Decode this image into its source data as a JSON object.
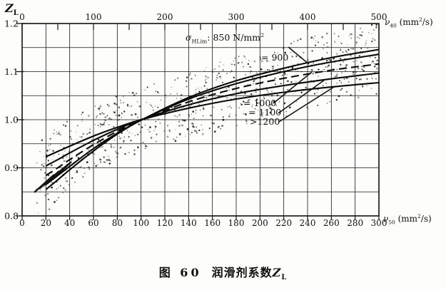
{
  "figure": {
    "caption": {
      "prefix": "图 60",
      "title": "润滑剂系数",
      "symbol": "Z",
      "symbol_sub": "L"
    }
  },
  "chart_data": {
    "type": "line",
    "title": "图 60 润滑剂系数 ZL (Figure 60 Lubricant factor ZL)",
    "y_axis": {
      "symbol": "Z",
      "symbol_sub": "L",
      "min": 0.8,
      "max": 1.2,
      "major_tick_labels": [
        "1.2",
        "1.1",
        "1.0",
        "0.9",
        "0.8"
      ],
      "major_tick_values": [
        1.2,
        1.1,
        1.0,
        0.9,
        0.8
      ],
      "minor_grid_step": 0.05
    },
    "x_top_axis": {
      "symbol": "ν",
      "symbol_sub": "40",
      "unit_pre": "(mm",
      "unit_sup": "2",
      "unit_post": "/s)",
      "min": 0,
      "max": 500,
      "major_ticks": [
        0,
        100,
        200,
        300,
        400,
        500
      ],
      "minor_tick_step": 50
    },
    "x_bottom_axis": {
      "symbol": "ν",
      "symbol_sub": "50",
      "unit_pre": "(mm",
      "unit_sup": "2",
      "unit_post": "/s)",
      "min": 0,
      "max": 300,
      "ticks": [
        0,
        20,
        40,
        60,
        80,
        100,
        120,
        140,
        160,
        180,
        200,
        220,
        240,
        260,
        280,
        300
      ],
      "grid_step": 20
    },
    "grid": {
      "on": true,
      "x_step": 20,
      "y_step": 0.05
    },
    "annotation": {
      "sigma_sym": "σ",
      "sigma_sub": "HLim",
      "sigma_rest": ": 850 N/mm",
      "sigma_sup": "2",
      "label_900": "= 900",
      "label_1000": "= 1000",
      "label_1100": "= 1100",
      "label_1200": ">1200"
    },
    "series": [
      {
        "name": "sigma-850",
        "label": "σHLim: 850 N/mm2",
        "style": "solid",
        "points": [
          [
            20,
            0.855
          ],
          [
            30,
            0.875
          ],
          [
            40,
            0.896
          ],
          [
            60,
            0.935
          ],
          [
            80,
            0.97
          ],
          [
            100,
            0.999
          ],
          [
            140,
            1.046
          ],
          [
            180,
            1.081
          ],
          [
            220,
            1.107
          ],
          [
            260,
            1.129
          ],
          [
            300,
            1.146
          ]
        ]
      },
      {
        "name": "sigma-900",
        "label": "= 900",
        "style": "solid",
        "points": [
          [
            20,
            0.865
          ],
          [
            30,
            0.884
          ],
          [
            40,
            0.903
          ],
          [
            60,
            0.94
          ],
          [
            80,
            0.972
          ],
          [
            100,
            0.999
          ],
          [
            140,
            1.043
          ],
          [
            180,
            1.075
          ],
          [
            220,
            1.1
          ],
          [
            260,
            1.12
          ],
          [
            300,
            1.136
          ]
        ]
      },
      {
        "name": "sigma-1000",
        "label": "= 1000",
        "style": "dashed",
        "points": [
          [
            20,
            0.884
          ],
          [
            30,
            0.9
          ],
          [
            40,
            0.917
          ],
          [
            60,
            0.948
          ],
          [
            80,
            0.976
          ],
          [
            100,
            0.999
          ],
          [
            140,
            1.037
          ],
          [
            180,
            1.065
          ],
          [
            220,
            1.086
          ],
          [
            260,
            1.103
          ],
          [
            300,
            1.116
          ]
        ]
      },
      {
        "name": "sigma-1100",
        "label": "= 1100",
        "style": "solid",
        "points": [
          [
            20,
            0.904
          ],
          [
            30,
            0.917
          ],
          [
            40,
            0.931
          ],
          [
            60,
            0.957
          ],
          [
            80,
            0.98
          ],
          [
            100,
            1.0
          ],
          [
            140,
            1.031
          ],
          [
            180,
            1.054
          ],
          [
            220,
            1.071
          ],
          [
            260,
            1.085
          ],
          [
            300,
            1.097
          ]
        ]
      },
      {
        "name": "sigma-1200",
        "label": ">1200",
        "style": "solid",
        "points": [
          [
            20,
            0.923
          ],
          [
            30,
            0.934
          ],
          [
            40,
            0.945
          ],
          [
            60,
            0.966
          ],
          [
            80,
            0.984
          ],
          [
            100,
            1.0
          ],
          [
            140,
            1.024
          ],
          [
            180,
            1.043
          ],
          [
            220,
            1.057
          ],
          [
            260,
            1.068
          ],
          [
            300,
            1.077
          ]
        ]
      }
    ],
    "scatter_band": {
      "upper": [
        [
          12,
          0.95
        ],
        [
          20,
          0.965
        ],
        [
          30,
          0.985
        ],
        [
          40,
          1.0
        ],
        [
          60,
          1.03
        ],
        [
          80,
          1.05
        ],
        [
          100,
          1.065
        ],
        [
          140,
          1.1
        ],
        [
          180,
          1.13
        ],
        [
          220,
          1.16
        ],
        [
          260,
          1.185
        ],
        [
          300,
          1.205
        ]
      ],
      "lower": [
        [
          12,
          0.79
        ],
        [
          20,
          0.795
        ],
        [
          30,
          0.83
        ],
        [
          40,
          0.86
        ],
        [
          60,
          0.895
        ],
        [
          80,
          0.915
        ],
        [
          100,
          0.932
        ],
        [
          140,
          0.962
        ],
        [
          180,
          0.985
        ],
        [
          220,
          1.005
        ],
        [
          260,
          1.028
        ],
        [
          300,
          1.048
        ]
      ]
    }
  }
}
